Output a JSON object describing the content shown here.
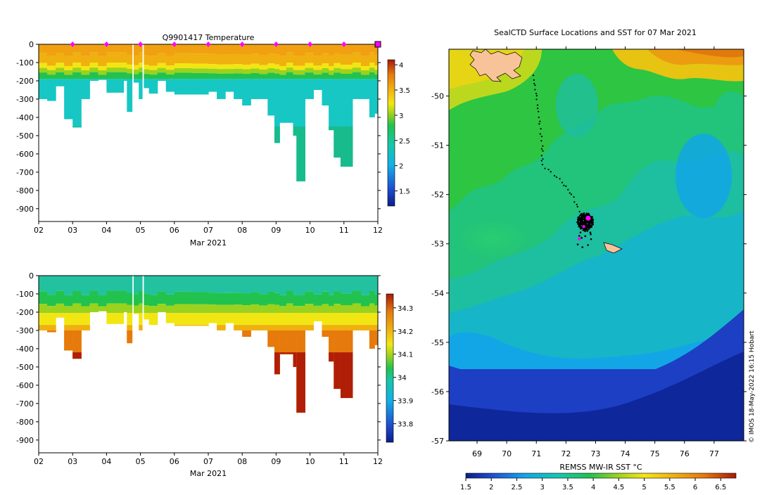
{
  "chart_data": [
    {
      "type": "heatmap",
      "title": "Q9901417  Temperature",
      "xlabel": "Mar 2021",
      "ylabel": "",
      "x_ticks": [
        "02",
        "03",
        "04",
        "05",
        "06",
        "07",
        "08",
        "09",
        "10",
        "11",
        "12"
      ],
      "xlim": [
        2,
        12
      ],
      "y_ticks": [
        0,
        -100,
        -200,
        -300,
        -400,
        -500,
        -600,
        -700,
        -800,
        -900
      ],
      "ylim": [
        -970,
        0
      ],
      "colorbar": {
        "ticks": [
          1.5,
          2,
          2.5,
          3,
          3.5,
          4
        ],
        "range": [
          1.2,
          4.1
        ]
      },
      "marker_days": [
        3,
        4,
        5,
        6,
        7,
        8,
        9,
        10,
        11
      ],
      "profiles": [
        {
          "t": 2.0,
          "w": 0.25,
          "depth": -300
        },
        {
          "t": 2.25,
          "w": 0.25,
          "depth": -310
        },
        {
          "t": 2.5,
          "w": 0.25,
          "depth": -230
        },
        {
          "t": 2.75,
          "w": 0.25,
          "depth": -410
        },
        {
          "t": 3.0,
          "w": 0.25,
          "depth": -455
        },
        {
          "t": 3.25,
          "w": 0.25,
          "depth": -300
        },
        {
          "t": 3.5,
          "w": 0.25,
          "depth": -200
        },
        {
          "t": 3.75,
          "w": 0.25,
          "depth": -195
        },
        {
          "t": 4.0,
          "w": 0.5,
          "depth": -265
        },
        {
          "t": 4.5,
          "w": 0.25,
          "depth": -200
        },
        {
          "t": 4.6,
          "w": 0.15,
          "depth": -370
        },
        {
          "t": 4.8,
          "w": 0.15,
          "depth": -210
        },
        {
          "t": 4.95,
          "w": 0.1,
          "depth": -300
        },
        {
          "t": 5.1,
          "w": 0.2,
          "depth": -240
        },
        {
          "t": 5.25,
          "w": 0.25,
          "depth": -270
        },
        {
          "t": 5.5,
          "w": 0.25,
          "depth": -200
        },
        {
          "t": 5.75,
          "w": 0.25,
          "depth": -260
        },
        {
          "t": 6.0,
          "w": 0.5,
          "depth": -275
        },
        {
          "t": 6.5,
          "w": 0.5,
          "depth": -275
        },
        {
          "t": 7.0,
          "w": 0.25,
          "depth": -260
        },
        {
          "t": 7.25,
          "w": 0.25,
          "depth": -300
        },
        {
          "t": 7.5,
          "w": 0.25,
          "depth": -260
        },
        {
          "t": 7.75,
          "w": 0.25,
          "depth": -300
        },
        {
          "t": 8.0,
          "w": 0.25,
          "depth": -335
        },
        {
          "t": 8.25,
          "w": 0.25,
          "depth": -300
        },
        {
          "t": 8.5,
          "w": 0.25,
          "depth": -300
        },
        {
          "t": 8.75,
          "w": 0.2,
          "depth": -390
        },
        {
          "t": 8.95,
          "w": 0.15,
          "depth": -540
        },
        {
          "t": 9.1,
          "w": 0.2,
          "depth": -430
        },
        {
          "t": 9.3,
          "w": 0.2,
          "depth": -430
        },
        {
          "t": 9.5,
          "w": 0.1,
          "depth": -500
        },
        {
          "t": 9.6,
          "w": 0.25,
          "depth": -750
        },
        {
          "t": 9.85,
          "w": 0.25,
          "depth": -300
        },
        {
          "t": 10.1,
          "w": 0.25,
          "depth": -250
        },
        {
          "t": 10.35,
          "w": 0.2,
          "depth": -335
        },
        {
          "t": 10.55,
          "w": 0.15,
          "depth": -470
        },
        {
          "t": 10.7,
          "w": 0.2,
          "depth": -620
        },
        {
          "t": 10.9,
          "w": 0.35,
          "depth": -670
        },
        {
          "t": 11.25,
          "w": 0.25,
          "depth": -300
        },
        {
          "t": 11.5,
          "w": 0.25,
          "depth": -300
        },
        {
          "t": 11.75,
          "w": 0.15,
          "depth": -400
        },
        {
          "t": 11.9,
          "w": 0.1,
          "depth": -380
        }
      ]
    },
    {
      "type": "heatmap",
      "title": "",
      "xlabel": "Mar 2021",
      "ylabel": "",
      "x_ticks": [
        "02",
        "03",
        "04",
        "05",
        "06",
        "07",
        "08",
        "09",
        "10",
        "11",
        "12"
      ],
      "xlim": [
        2,
        12
      ],
      "y_ticks": [
        0,
        -100,
        -200,
        -300,
        -400,
        -500,
        -600,
        -700,
        -800,
        -900
      ],
      "ylim": [
        -970,
        0
      ],
      "colorbar": {
        "ticks": [
          33.8,
          33.9,
          34,
          34.1,
          34.2,
          34.3
        ],
        "range": [
          33.72,
          34.36
        ]
      }
    },
    {
      "type": "heatmap",
      "title": "SealCTD Surface Locations and SST for 07 Mar 2021",
      "xlabel": "",
      "ylabel": "",
      "x_ticks": [
        69,
        70,
        71,
        72,
        73,
        74,
        75,
        76,
        77
      ],
      "xlim": [
        68.05,
        78.0
      ],
      "y_ticks": [
        -50,
        -51,
        -52,
        -53,
        -54,
        -55,
        -56,
        -57
      ],
      "ylim": [
        -57.0,
        -49.05
      ],
      "colorbar_label": "REMSS MW-IR SST °C",
      "colorbar": {
        "ticks": [
          1.5,
          2,
          2.5,
          3,
          3.5,
          4,
          4.5,
          5,
          5.5,
          6,
          6.5
        ],
        "range": [
          1.5,
          6.8
        ]
      },
      "track": [
        [
          70.9,
          -49.6
        ],
        [
          71.0,
          -50.0
        ],
        [
          71.1,
          -50.5
        ],
        [
          71.2,
          -51.0
        ],
        [
          71.2,
          -51.4
        ],
        [
          71.8,
          -51.7
        ],
        [
          72.2,
          -52.0
        ],
        [
          72.5,
          -52.4
        ],
        [
          72.7,
          -52.5
        ]
      ],
      "cluster_center": [
        72.7,
        -52.5
      ],
      "latest_position": [
        72.75,
        -52.48
      ],
      "islands": [
        "Kerguelen",
        "Heard Island"
      ]
    }
  ],
  "credit": "© IMOS 18-May-2022 16:15 Hobart"
}
